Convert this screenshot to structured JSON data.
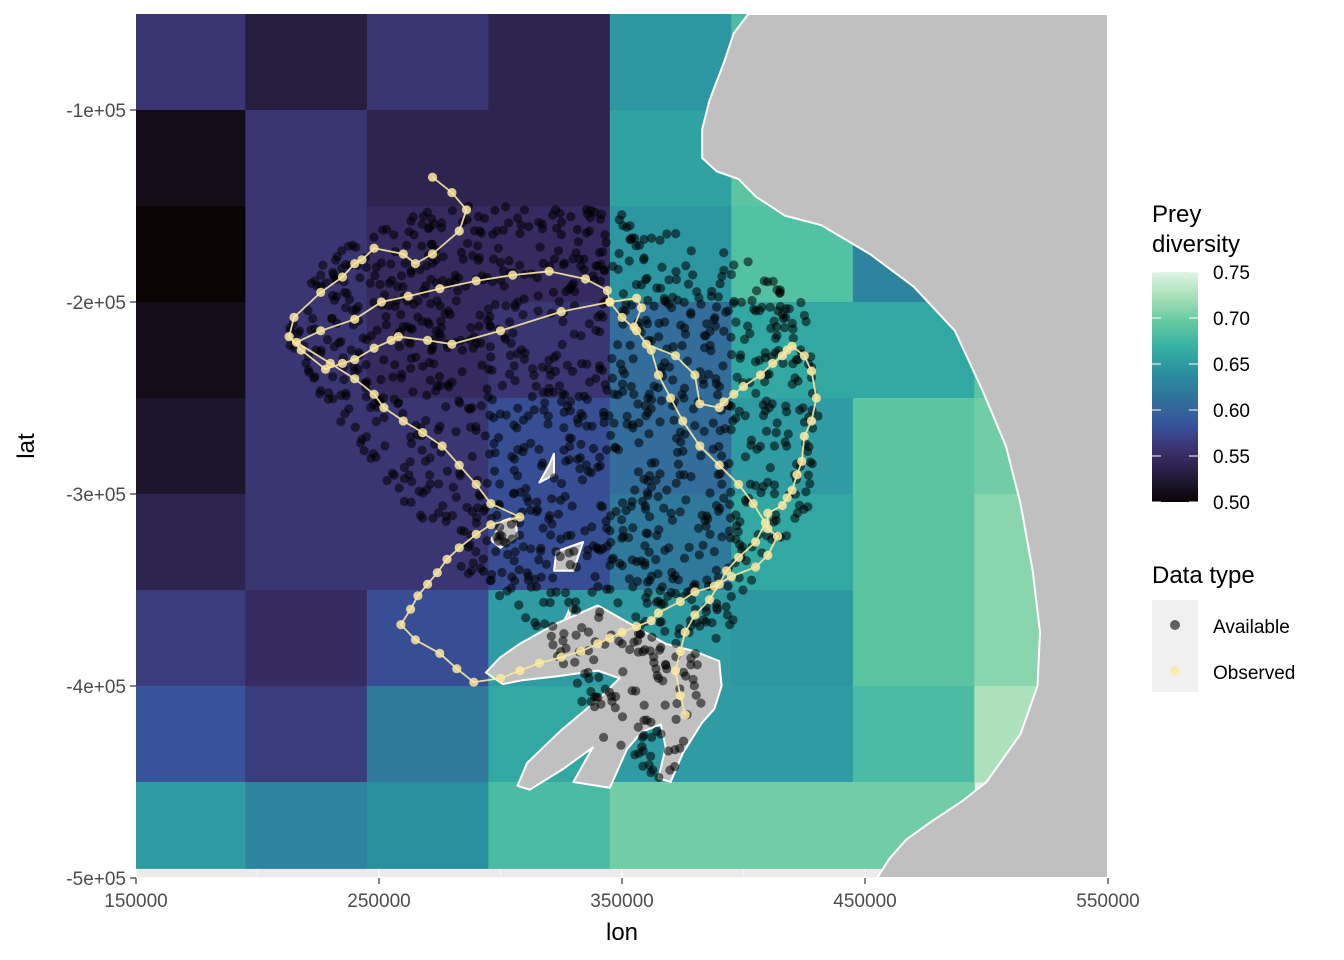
{
  "chart_data": {
    "type": "heatmap",
    "xlabel": "lon",
    "ylabel": "lat",
    "xlim": [
      150000,
      550000
    ],
    "ylim": [
      -500000,
      -50000
    ],
    "x_ticks": [
      150000,
      250000,
      350000,
      450000,
      550000
    ],
    "x_tick_labels": [
      "150000",
      "250000",
      "350000",
      "450000",
      "550000"
    ],
    "y_ticks": [
      -100000,
      -200000,
      -300000,
      -400000,
      -500000
    ],
    "y_tick_labels": [
      "-1e+05",
      "-2e+05",
      "-3e+05",
      "-4e+05",
      "-5e+05"
    ],
    "grid": true,
    "raster": {
      "x_centers": [
        172500,
        220000,
        270000,
        320000,
        370000,
        420000,
        470000,
        520000
      ],
      "x_edges": [
        150000,
        195000,
        245000,
        295000,
        345000,
        395000,
        445000,
        495000,
        545000
      ],
      "y_edges": [
        -50000,
        -100000,
        -150000,
        -200000,
        -250000,
        -300000,
        -350000,
        -400000,
        -450000,
        -495000
      ],
      "values": [
        [
          0.56,
          0.53,
          0.56,
          0.54,
          0.645,
          0.68,
          null,
          null
        ],
        [
          0.51,
          0.56,
          0.54,
          0.54,
          0.655,
          0.69,
          null,
          null
        ],
        [
          0.5,
          0.56,
          0.55,
          0.55,
          0.645,
          0.685,
          0.63,
          null
        ],
        [
          0.51,
          0.56,
          0.55,
          0.56,
          0.61,
          0.66,
          0.66,
          0.69
        ],
        [
          0.52,
          0.56,
          0.56,
          0.58,
          0.61,
          0.65,
          0.69,
          0.7
        ],
        [
          0.54,
          0.56,
          0.56,
          0.58,
          0.62,
          0.66,
          0.69,
          0.71
        ],
        [
          0.565,
          0.55,
          0.58,
          0.65,
          0.65,
          0.645,
          0.69,
          0.71
        ],
        [
          0.585,
          0.565,
          0.62,
          0.66,
          0.65,
          0.65,
          0.68,
          0.725
        ],
        [
          0.65,
          0.63,
          0.64,
          0.68,
          0.7,
          0.7,
          0.7,
          null
        ]
      ]
    },
    "coastline": {
      "name": "land",
      "color": "#c0c0c0",
      "outline": "#ffffff",
      "points": [
        [
          402000,
          -50000
        ],
        [
          396000,
          -60000
        ],
        [
          392000,
          -75000
        ],
        [
          386000,
          -95000
        ],
        [
          383000,
          -110000
        ],
        [
          383000,
          -125000
        ],
        [
          389000,
          -132000
        ],
        [
          398000,
          -136000
        ],
        [
          405000,
          -145000
        ],
        [
          417000,
          -155000
        ],
        [
          432000,
          -160000
        ],
        [
          452000,
          -175000
        ],
        [
          470000,
          -192000
        ],
        [
          487000,
          -215000
        ],
        [
          498000,
          -245000
        ],
        [
          508000,
          -275000
        ],
        [
          514000,
          -305000
        ],
        [
          519000,
          -340000
        ],
        [
          522000,
          -372000
        ],
        [
          521000,
          -400000
        ],
        [
          514000,
          -425000
        ],
        [
          500000,
          -450000
        ],
        [
          490000,
          -460000
        ],
        [
          478000,
          -470000
        ],
        [
          467000,
          -480000
        ],
        [
          460000,
          -490000
        ],
        [
          455000,
          -500000
        ],
        [
          550000,
          -500000
        ],
        [
          550000,
          -50000
        ]
      ]
    },
    "island_shapes": [
      [
        [
          306000,
          -312000
        ],
        [
          301000,
          -314000
        ],
        [
          296000,
          -324000
        ],
        [
          300000,
          -328000
        ],
        [
          307000,
          -322000
        ]
      ],
      [
        [
          329000,
          -358000
        ],
        [
          327000,
          -364000
        ],
        [
          322000,
          -374000
        ],
        [
          327000,
          -376000
        ]
      ],
      [
        [
          334000,
          -325000
        ],
        [
          323000,
          -330000
        ],
        [
          322000,
          -340000
        ],
        [
          330000,
          -340000
        ]
      ],
      [
        [
          322000,
          -279000
        ],
        [
          320000,
          -285000
        ],
        [
          316000,
          -294000
        ],
        [
          322000,
          -290000
        ]
      ],
      [
        [
          340000,
          -358000
        ],
        [
          322000,
          -368000
        ],
        [
          308000,
          -378000
        ],
        [
          300000,
          -385000
        ],
        [
          294000,
          -393000
        ],
        [
          301000,
          -399000
        ],
        [
          309000,
          -397000
        ],
        [
          323000,
          -395000
        ],
        [
          340000,
          -392000
        ],
        [
          349000,
          -396000
        ],
        [
          341000,
          -406000
        ],
        [
          325000,
          -423000
        ],
        [
          311000,
          -440000
        ],
        [
          307000,
          -452000
        ],
        [
          312000,
          -454000
        ],
        [
          326000,
          -443000
        ],
        [
          338000,
          -432000
        ],
        [
          330000,
          -450000
        ],
        [
          345000,
          -453000
        ],
        [
          352000,
          -433000
        ],
        [
          358000,
          -424000
        ],
        [
          366000,
          -420000
        ],
        [
          368000,
          -432000
        ],
        [
          365000,
          -448000
        ],
        [
          370000,
          -450000
        ],
        [
          375000,
          -435000
        ],
        [
          383000,
          -419000
        ],
        [
          388000,
          -412000
        ],
        [
          391000,
          -400000
        ],
        [
          390000,
          -387000
        ],
        [
          380000,
          -382000
        ],
        [
          368000,
          -378000
        ]
      ]
    ],
    "colorbar": {
      "title": "Prey diversity",
      "min": 0.5,
      "max": 0.75,
      "ticks": [
        0.75,
        0.7,
        0.65,
        0.6,
        0.55,
        0.5
      ],
      "tick_labels": [
        "0.75",
        "0.70",
        "0.65",
        "0.60",
        "0.55",
        "0.50"
      ],
      "palette": [
        "#0b0405",
        "#241b3b",
        "#3b2f6b",
        "#37529a",
        "#326e9b",
        "#2a8fa0",
        "#34b0a4",
        "#63c9a2",
        "#a6dfb7",
        "#def5e5"
      ]
    },
    "legend": {
      "title": "Data type",
      "entries": [
        {
          "name": "Available",
          "color": "#000000",
          "opacity": 0.6
        },
        {
          "name": "Observed",
          "color": "#fbe8a0",
          "opacity": 0.8
        }
      ],
      "placement": "right"
    },
    "series": [
      {
        "name": "Available",
        "type": "scatter",
        "color": "#000000",
        "region_polygon": [
          [
            210000,
            -210000
          ],
          [
            228000,
            -175000
          ],
          [
            250000,
            -162000
          ],
          [
            275000,
            -150000
          ],
          [
            300000,
            -148000
          ],
          [
            345000,
            -150000
          ],
          [
            380000,
            -168000
          ],
          [
            402000,
            -178000
          ],
          [
            425000,
            -200000
          ],
          [
            430000,
            -235000
          ],
          [
            431000,
            -255000
          ],
          [
            430000,
            -280000
          ],
          [
            428000,
            -310000
          ],
          [
            415000,
            -330000
          ],
          [
            400000,
            -350000
          ],
          [
            395000,
            -370000
          ],
          [
            385000,
            -395000
          ],
          [
            380000,
            -425000
          ],
          [
            368000,
            -450000
          ],
          [
            355000,
            -440000
          ],
          [
            343000,
            -428000
          ],
          [
            320000,
            -380000
          ],
          [
            305000,
            -365000
          ],
          [
            285000,
            -340000
          ],
          [
            270000,
            -318000
          ],
          [
            252000,
            -292000
          ],
          [
            235000,
            -265000
          ],
          [
            220000,
            -240000
          ],
          [
            213000,
            -225000
          ]
        ],
        "n_points": 1300
      },
      {
        "name": "Observed",
        "type": "line",
        "color": "#fbe8a0",
        "x": [
          272000,
          280000,
          286000,
          283000,
          272000,
          265000,
          260000,
          248000,
          243000,
          240000,
          235000,
          226000,
          215000,
          213000,
          218000,
          228000,
          235000,
          240000,
          248000,
          255000,
          258000,
          270000,
          280000,
          300000,
          325000,
          345000,
          356000,
          358000,
          355000,
          360000,
          372000,
          380000,
          382000,
          390000,
          392000,
          396000,
          400000,
          407000,
          412000,
          416000,
          418000,
          420000,
          425000,
          428000,
          430000,
          428000,
          425000,
          424000,
          422000,
          420000,
          418000,
          416000,
          410000,
          410000,
          414000,
          410000,
          405000,
          395000,
          388000,
          380000,
          374000,
          365000,
          362000,
          356000,
          350000,
          345000,
          340000,
          333000,
          325000,
          316000,
          308000,
          300000,
          289000,
          282000,
          275000,
          265000,
          259000,
          263000,
          266000,
          270000,
          274000,
          278000,
          283000,
          290000,
          296000,
          308000,
          296000,
          290000,
          283000,
          276000,
          268000,
          260000,
          252000,
          248000,
          240000,
          230000,
          216000,
          226000,
          240000,
          251000,
          262000,
          275000,
          290000,
          305000,
          320000,
          335000,
          344000,
          345000,
          350000,
          356000,
          362000,
          365000,
          370000,
          375000,
          382000,
          390000,
          398000,
          404000,
          409000,
          405000,
          398000,
          393000,
          390000,
          386000,
          380000,
          376000,
          374000,
          372000,
          374000,
          376000
        ],
        "y": [
          -135000,
          -143000,
          -152000,
          -163000,
          -175000,
          -180000,
          -175000,
          -172000,
          -178000,
          -180000,
          -187000,
          -195000,
          -208000,
          -218000,
          -225000,
          -235000,
          -232000,
          -230000,
          -224000,
          -220000,
          -218000,
          -220000,
          -222000,
          -215000,
          -205000,
          -200000,
          -198000,
          -203000,
          -213000,
          -222000,
          -228000,
          -238000,
          -253000,
          -255000,
          -252000,
          -248000,
          -244000,
          -238000,
          -232000,
          -228000,
          -225000,
          -223000,
          -228000,
          -236000,
          -250000,
          -262000,
          -270000,
          -283000,
          -290000,
          -298000,
          -302000,
          -306000,
          -310000,
          -318000,
          -322000,
          -332000,
          -338000,
          -343000,
          -348000,
          -351000,
          -356000,
          -362000,
          -366000,
          -369000,
          -372000,
          -375000,
          -378000,
          -382000,
          -385000,
          -388000,
          -392000,
          -396000,
          -398000,
          -391000,
          -383000,
          -376000,
          -368000,
          -360000,
          -353000,
          -347000,
          -341000,
          -334000,
          -328000,
          -321000,
          -316000,
          -312000,
          -305000,
          -295000,
          -285000,
          -275000,
          -268000,
          -262000,
          -255000,
          -248000,
          -240000,
          -232000,
          -221000,
          -215000,
          -209000,
          -200000,
          -197000,
          -193000,
          -189000,
          -186000,
          -184000,
          -188000,
          -194000,
          -200000,
          -208000,
          -215000,
          -225000,
          -238000,
          -250000,
          -262000,
          -275000,
          -285000,
          -295000,
          -305000,
          -315000,
          -325000,
          -333000,
          -340000,
          -347000,
          -355000,
          -363000,
          -372000,
          -382000,
          -392000,
          -405000,
          -415000
        ]
      }
    ]
  }
}
